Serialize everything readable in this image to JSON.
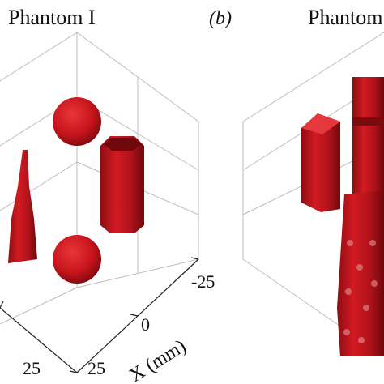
{
  "panels": [
    {
      "title": "Phantom I",
      "x_ticks": [
        "-25",
        "0",
        "25"
      ],
      "y_tick": "25",
      "x_label": "X (mm)"
    },
    {
      "label": "(b)",
      "title": "Phantom II"
    }
  ]
}
